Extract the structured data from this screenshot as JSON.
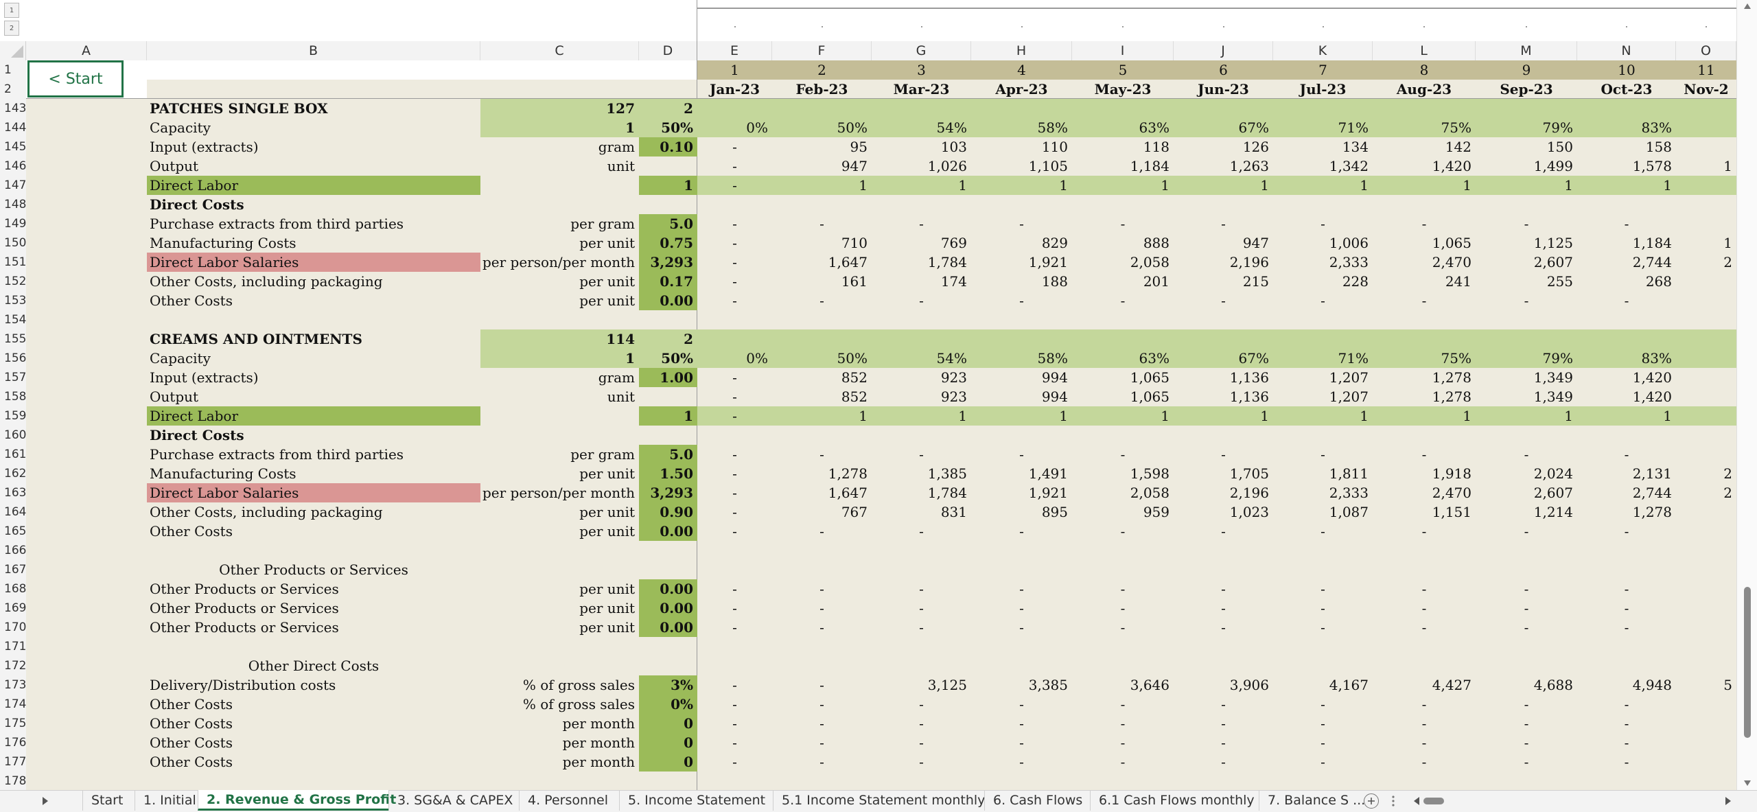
{
  "outline_levels": [
    "1",
    "2"
  ],
  "start_button": "< Start",
  "columns": [
    "A",
    "B",
    "C",
    "D",
    "E",
    "F",
    "G",
    "H",
    "I",
    "J",
    "K",
    "L",
    "M",
    "N",
    "O"
  ],
  "period_numbers": [
    "1",
    "2",
    "3",
    "4",
    "5",
    "6",
    "7",
    "8",
    "9",
    "10",
    "11"
  ],
  "period_months": [
    "Jan-23",
    "Feb-23",
    "Mar-23",
    "Apr-23",
    "May-23",
    "Jun-23",
    "Jul-23",
    "Aug-23",
    "Sep-23",
    "Oct-23",
    "Nov-2"
  ],
  "row_numbers": [
    "1",
    "2",
    "143",
    "144",
    "145",
    "146",
    "147",
    "148",
    "149",
    "150",
    "151",
    "152",
    "153",
    "154",
    "155",
    "156",
    "157",
    "158",
    "159",
    "160",
    "161",
    "162",
    "163",
    "164",
    "165",
    "166",
    "167",
    "168",
    "169",
    "170",
    "171",
    "172",
    "173",
    "174",
    "175",
    "176",
    "177",
    "178"
  ],
  "rows": [
    {
      "b": "PATCHES SINGLE BOX",
      "c": "127",
      "d": "2",
      "vals": [
        "",
        "",
        "",
        "",
        "",
        "",
        "",
        "",
        "",
        "",
        ""
      ],
      "style": "section"
    },
    {
      "b": "Capacity",
      "c": "1",
      "d": "50%",
      "vals": [
        "0%",
        "50%",
        "54%",
        "58%",
        "63%",
        "67%",
        "71%",
        "75%",
        "79%",
        "83%",
        ""
      ],
      "style": "capacity"
    },
    {
      "b": "Input (extracts)",
      "c": "gram",
      "d": "0.10",
      "vals": [
        "-",
        "95",
        "103",
        "110",
        "118",
        "126",
        "134",
        "142",
        "150",
        "158",
        ""
      ],
      "style": "input"
    },
    {
      "b": "Output",
      "c": "unit",
      "d": "",
      "vals": [
        "-",
        "947",
        "1,026",
        "1,105",
        "1,184",
        "1,263",
        "1,342",
        "1,420",
        "1,499",
        "1,578",
        "1"
      ],
      "style": "plain"
    },
    {
      "b": "Direct Labor",
      "c": "",
      "d": "1",
      "vals": [
        "-",
        "1",
        "1",
        "1",
        "1",
        "1",
        "1",
        "1",
        "1",
        "1",
        ""
      ],
      "style": "labor"
    },
    {
      "b": "Direct Costs",
      "c": "",
      "d": "",
      "vals": [
        "",
        "",
        "",
        "",
        "",
        "",
        "",
        "",
        "",
        "",
        ""
      ],
      "style": "heading"
    },
    {
      "b": "Purchase extracts from third parties",
      "c": "per gram",
      "d": "5.0",
      "vals": [
        "-",
        "-",
        "-",
        "-",
        "-",
        "-",
        "-",
        "-",
        "-",
        "-",
        ""
      ],
      "style": "input"
    },
    {
      "b": "Manufacturing Costs",
      "c": "per unit",
      "d": "0.75",
      "vals": [
        "-",
        "710",
        "769",
        "829",
        "888",
        "947",
        "1,006",
        "1,065",
        "1,125",
        "1,184",
        "1"
      ],
      "style": "input"
    },
    {
      "b": "Direct Labor Salaries",
      "c": "per person/per month",
      "d": "3,293",
      "vals": [
        "-",
        "1,647",
        "1,784",
        "1,921",
        "2,058",
        "2,196",
        "2,333",
        "2,470",
        "2,607",
        "2,744",
        "2"
      ],
      "style": "salaries"
    },
    {
      "b": "Other Costs, including packaging",
      "c": "per unit",
      "d": "0.17",
      "vals": [
        "-",
        "161",
        "174",
        "188",
        "201",
        "215",
        "228",
        "241",
        "255",
        "268",
        ""
      ],
      "style": "input"
    },
    {
      "b": "Other Costs",
      "c": "per unit",
      "d": "0.00",
      "vals": [
        "-",
        "-",
        "-",
        "-",
        "-",
        "-",
        "-",
        "-",
        "-",
        "-",
        ""
      ],
      "style": "input"
    },
    {
      "b": "",
      "c": "",
      "d": "",
      "vals": [
        "",
        "",
        "",
        "",
        "",
        "",
        "",
        "",
        "",
        "",
        ""
      ],
      "style": "plain"
    },
    {
      "b": "CREAMS AND OINTMENTS",
      "c": "114",
      "d": "2",
      "vals": [
        "",
        "",
        "",
        "",
        "",
        "",
        "",
        "",
        "",
        "",
        ""
      ],
      "style": "section"
    },
    {
      "b": "Capacity",
      "c": "1",
      "d": "50%",
      "vals": [
        "0%",
        "50%",
        "54%",
        "58%",
        "63%",
        "67%",
        "71%",
        "75%",
        "79%",
        "83%",
        ""
      ],
      "style": "capacity"
    },
    {
      "b": "Input (extracts)",
      "c": "gram",
      "d": "1.00",
      "vals": [
        "-",
        "852",
        "923",
        "994",
        "1,065",
        "1,136",
        "1,207",
        "1,278",
        "1,349",
        "1,420",
        ""
      ],
      "style": "input"
    },
    {
      "b": "Output",
      "c": "unit",
      "d": "",
      "vals": [
        "-",
        "852",
        "923",
        "994",
        "1,065",
        "1,136",
        "1,207",
        "1,278",
        "1,349",
        "1,420",
        ""
      ],
      "style": "plain"
    },
    {
      "b": "Direct Labor",
      "c": "",
      "d": "1",
      "vals": [
        "-",
        "1",
        "1",
        "1",
        "1",
        "1",
        "1",
        "1",
        "1",
        "1",
        ""
      ],
      "style": "labor"
    },
    {
      "b": "Direct Costs",
      "c": "",
      "d": "",
      "vals": [
        "",
        "",
        "",
        "",
        "",
        "",
        "",
        "",
        "",
        "",
        ""
      ],
      "style": "heading"
    },
    {
      "b": "Purchase extracts from third parties",
      "c": "per gram",
      "d": "5.0",
      "vals": [
        "-",
        "-",
        "-",
        "-",
        "-",
        "-",
        "-",
        "-",
        "-",
        "-",
        ""
      ],
      "style": "input"
    },
    {
      "b": "Manufacturing Costs",
      "c": "per unit",
      "d": "1.50",
      "vals": [
        "-",
        "1,278",
        "1,385",
        "1,491",
        "1,598",
        "1,705",
        "1,811",
        "1,918",
        "2,024",
        "2,131",
        "2"
      ],
      "style": "input"
    },
    {
      "b": "Direct Labor Salaries",
      "c": "per person/per month",
      "d": "3,293",
      "vals": [
        "-",
        "1,647",
        "1,784",
        "1,921",
        "2,058",
        "2,196",
        "2,333",
        "2,470",
        "2,607",
        "2,744",
        "2"
      ],
      "style": "salaries"
    },
    {
      "b": "Other Costs, including packaging",
      "c": "per unit",
      "d": "0.90",
      "vals": [
        "-",
        "767",
        "831",
        "895",
        "959",
        "1,023",
        "1,087",
        "1,151",
        "1,214",
        "1,278",
        ""
      ],
      "style": "input"
    },
    {
      "b": "Other Costs",
      "c": "per unit",
      "d": "0.00",
      "vals": [
        "-",
        "-",
        "-",
        "-",
        "-",
        "-",
        "-",
        "-",
        "-",
        "-",
        ""
      ],
      "style": "input"
    },
    {
      "b": "",
      "c": "",
      "d": "",
      "vals": [
        "",
        "",
        "",
        "",
        "",
        "",
        "",
        "",
        "",
        "",
        ""
      ],
      "style": "plain"
    },
    {
      "b": "Other Products or Services",
      "c": "",
      "d": "",
      "vals": [
        "",
        "",
        "",
        "",
        "",
        "",
        "",
        "",
        "",
        "",
        ""
      ],
      "style": "centered"
    },
    {
      "b": "Other Products or Services",
      "c": "per unit",
      "d": "0.00",
      "vals": [
        "-",
        "-",
        "-",
        "-",
        "-",
        "-",
        "-",
        "-",
        "-",
        "-",
        ""
      ],
      "style": "input"
    },
    {
      "b": "Other Products or Services",
      "c": "per unit",
      "d": "0.00",
      "vals": [
        "-",
        "-",
        "-",
        "-",
        "-",
        "-",
        "-",
        "-",
        "-",
        "-",
        ""
      ],
      "style": "input"
    },
    {
      "b": "Other Products or Services",
      "c": "per unit",
      "d": "0.00",
      "vals": [
        "-",
        "-",
        "-",
        "-",
        "-",
        "-",
        "-",
        "-",
        "-",
        "-",
        ""
      ],
      "style": "input"
    },
    {
      "b": "",
      "c": "",
      "d": "",
      "vals": [
        "",
        "",
        "",
        "",
        "",
        "",
        "",
        "",
        "",
        "",
        ""
      ],
      "style": "plain"
    },
    {
      "b": "Other Direct Costs",
      "c": "",
      "d": "",
      "vals": [
        "",
        "",
        "",
        "",
        "",
        "",
        "",
        "",
        "",
        "",
        ""
      ],
      "style": "centered"
    },
    {
      "b": "Delivery/Distribution costs",
      "c": "% of gross sales",
      "d": "3%",
      "vals": [
        "-",
        "-",
        "3,125",
        "3,385",
        "3,646",
        "3,906",
        "4,167",
        "4,427",
        "4,688",
        "4,948",
        "5"
      ],
      "style": "input"
    },
    {
      "b": "Other Costs",
      "c": "% of gross sales",
      "d": "0%",
      "vals": [
        "-",
        "-",
        "-",
        "-",
        "-",
        "-",
        "-",
        "-",
        "-",
        "-",
        ""
      ],
      "style": "input"
    },
    {
      "b": "Other Costs",
      "c": "per month",
      "d": "0",
      "vals": [
        "-",
        "-",
        "-",
        "-",
        "-",
        "-",
        "-",
        "-",
        "-",
        "-",
        ""
      ],
      "style": "input"
    },
    {
      "b": "Other Costs",
      "c": "per month",
      "d": "0",
      "vals": [
        "-",
        "-",
        "-",
        "-",
        "-",
        "-",
        "-",
        "-",
        "-",
        "-",
        ""
      ],
      "style": "input"
    },
    {
      "b": "Other Costs",
      "c": "per month",
      "d": "0",
      "vals": [
        "-",
        "-",
        "-",
        "-",
        "-",
        "-",
        "-",
        "-",
        "-",
        "-",
        ""
      ],
      "style": "input"
    },
    {
      "b": "",
      "c": "",
      "d": "",
      "vals": [
        "",
        "",
        "",
        "",
        "",
        "",
        "",
        "",
        "",
        "",
        ""
      ],
      "style": "plain"
    }
  ],
  "sheet_tabs": [
    "Start",
    "1. Initial",
    "2. Revenue & Gross Profit",
    "3. SG&A & CAPEX",
    "4. Personnel",
    "5. Income Statement",
    "5.1 Income Statement monthly",
    "6. Cash Flows",
    "6.1 Cash Flows monthly",
    "7. Balance S ..."
  ],
  "active_tab_index": 2,
  "colors": {
    "background": "#eeebdf",
    "input_green": "#9bbb59",
    "light_green": "#c4d79b",
    "header_tan": "#c4bd97",
    "salaries_red": "#da9694",
    "active_tab_text": "#217346"
  },
  "icons": [
    "next-sheet-arrow-icon",
    "add-sheet-icon",
    "more-icon",
    "scroll-left-icon",
    "scroll-right-icon",
    "scroll-up-icon",
    "scroll-down-icon"
  ]
}
